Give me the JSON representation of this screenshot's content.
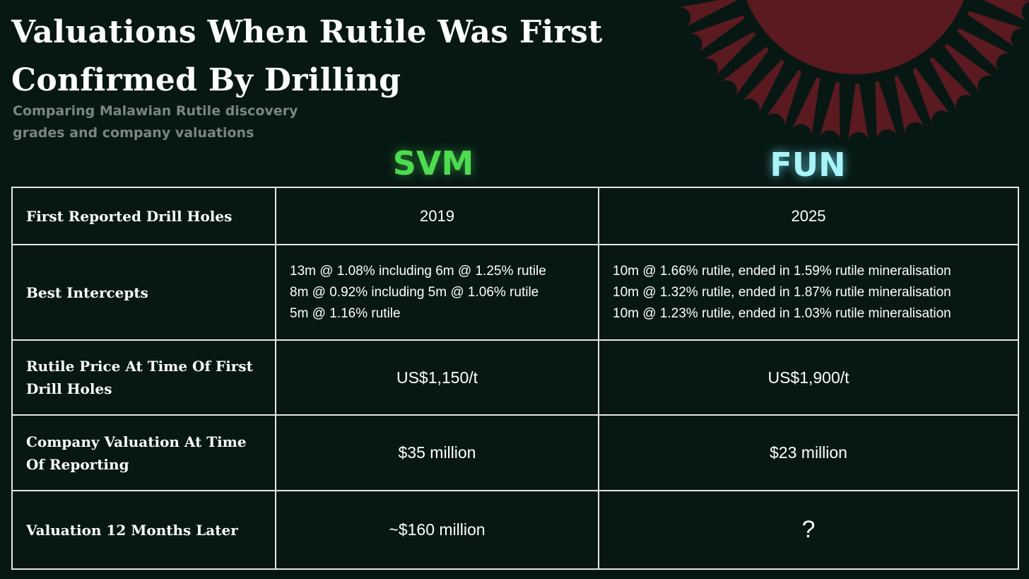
{
  "title": "Valuations When Rutile Was First Confirmed By Drilling",
  "subtitle": "Comparing Malawian Rutile discovery grades and company valuations",
  "companies": {
    "svm": {
      "name": "SVM",
      "color": "#4ddc50"
    },
    "fun": {
      "name": "FUN",
      "color": "#a8f4f8"
    }
  },
  "colors": {
    "background": "#071814",
    "sun": "#5a1a1f",
    "grid": "#e6e6e6",
    "subtitle": "#7b8581"
  },
  "icons": {
    "sun": "sunburst-decoration-icon"
  },
  "table": {
    "rows": [
      {
        "label": "First Reported Drill Holes",
        "svm": "2019",
        "fun": "2025"
      },
      {
        "label": "Best Intercepts",
        "svm": [
          "13m @ 1.08% including 6m @ 1.25% rutile",
          "8m @ 0.92% including 5m @ 1.06% rutile",
          "5m @ 1.16% rutile"
        ],
        "fun": [
          "10m @ 1.66% rutile, ended in 1.59% rutile mineralisation",
          "10m @ 1.32% rutile, ended in 1.87% rutile mineralisation",
          "10m @ 1.23% rutile, ended in 1.03% rutile mineralisation"
        ]
      },
      {
        "label": "Rutile Price At Time Of First Drill Holes",
        "svm": "US$1,150/t",
        "fun": "US$1,900/t"
      },
      {
        "label": "Company Valuation At Time Of Reporting",
        "svm": "$35 million",
        "fun": "$23 million"
      },
      {
        "label": "Valuation 12 Months Later",
        "svm": "~$160 million",
        "fun": "?"
      }
    ]
  }
}
